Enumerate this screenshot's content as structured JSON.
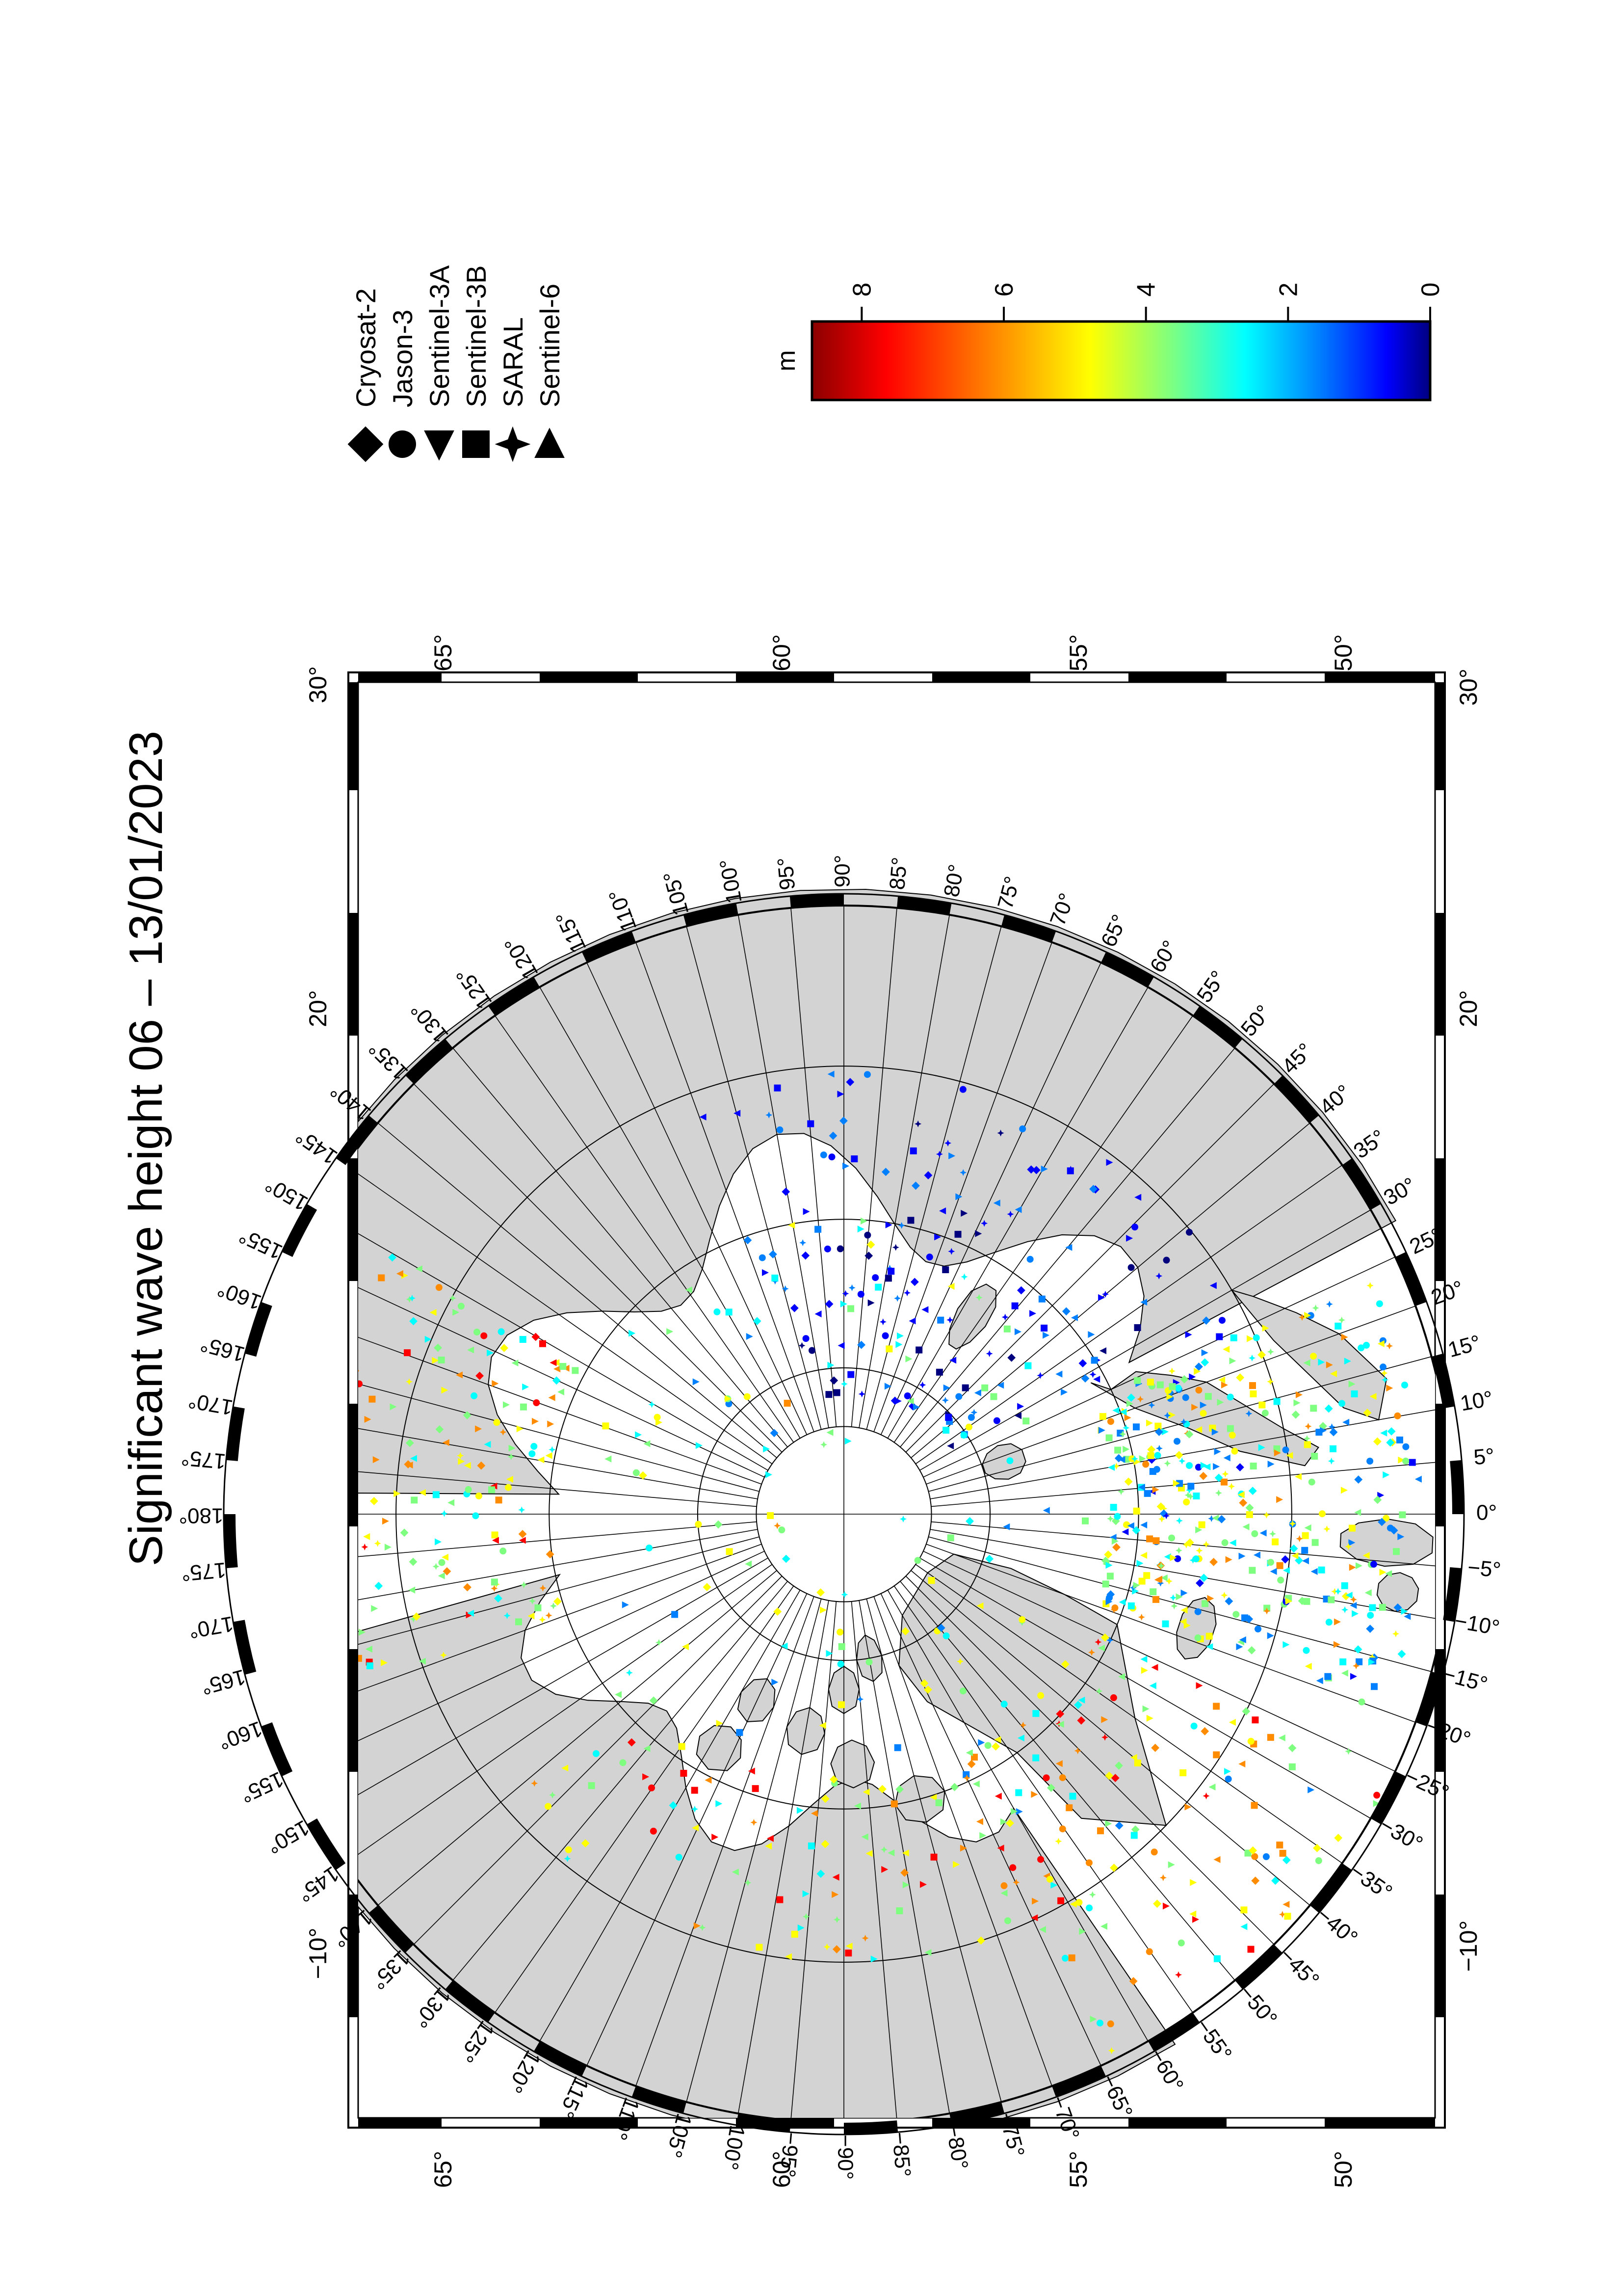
{
  "title": "Significant wave height 06 – 13/01/2023",
  "frame": {
    "left_lon_labels": [
      "30°",
      "20°",
      "−10°"
    ],
    "right_lon_labels": [
      "30°",
      "20°",
      "−10°"
    ],
    "top_lat_labels": [
      "65°",
      "60°",
      "55°",
      "50°"
    ],
    "bottom_lat_labels": [
      "65°",
      "60°",
      "55°",
      "50°"
    ]
  },
  "polar_map": {
    "projection": "north-polar-stereographic",
    "meridian_step_deg": 5,
    "meridian_labels": [
      "0°",
      "5°",
      "10°",
      "15°",
      "20°",
      "25°",
      "30°",
      "35°",
      "40°",
      "45°",
      "50°",
      "55°",
      "60°",
      "65°",
      "70°",
      "75°",
      "80°",
      "85°",
      "90°",
      "95°",
      "100°",
      "105°",
      "110°",
      "115°",
      "120°",
      "125°",
      "130°",
      "135°",
      "140°",
      "145°",
      "150°",
      "155°",
      "160°",
      "165°",
      "170°",
      "175°",
      "180°",
      "175°",
      "170°",
      "165°",
      "160°",
      "155°",
      "150°",
      "145°",
      "140°",
      "135°",
      "130°",
      "125°",
      "120°",
      "115°",
      "110°",
      "105°",
      "100°",
      "−95°",
      "−90°",
      "−85°",
      "−80°",
      "−75°",
      "−70°",
      "−65°",
      "−60°",
      "−55°",
      "−50°",
      "−45°",
      "−40°",
      "−35°",
      "−30°",
      "−25°",
      "−20°",
      "−15°",
      "−10°",
      "−5°"
    ],
    "land_color": "#d3d3d3",
    "ocean_color": "#ffffff"
  },
  "legend": {
    "satellites": [
      {
        "name": "Cryosat-2",
        "symbol": "diamond"
      },
      {
        "name": "Jason-3",
        "symbol": "circle"
      },
      {
        "name": "Sentinel-3A",
        "symbol": "triangle-left"
      },
      {
        "name": "Sentinel-3B",
        "symbol": "square"
      },
      {
        "name": "SARAL",
        "symbol": "star"
      },
      {
        "name": "Sentinel-6",
        "symbol": "triangle-right"
      }
    ]
  },
  "colorbar": {
    "unit": "m",
    "ticks": [
      "8",
      "6",
      "4",
      "2",
      "0"
    ],
    "range_m": [
      0,
      8.7
    ],
    "colors": [
      "#8b0000",
      "#ff0000",
      "#ff8c00",
      "#ffff00",
      "#7fff7f",
      "#00ffff",
      "#0080ff",
      "#0000ff",
      "#00007f"
    ]
  }
}
